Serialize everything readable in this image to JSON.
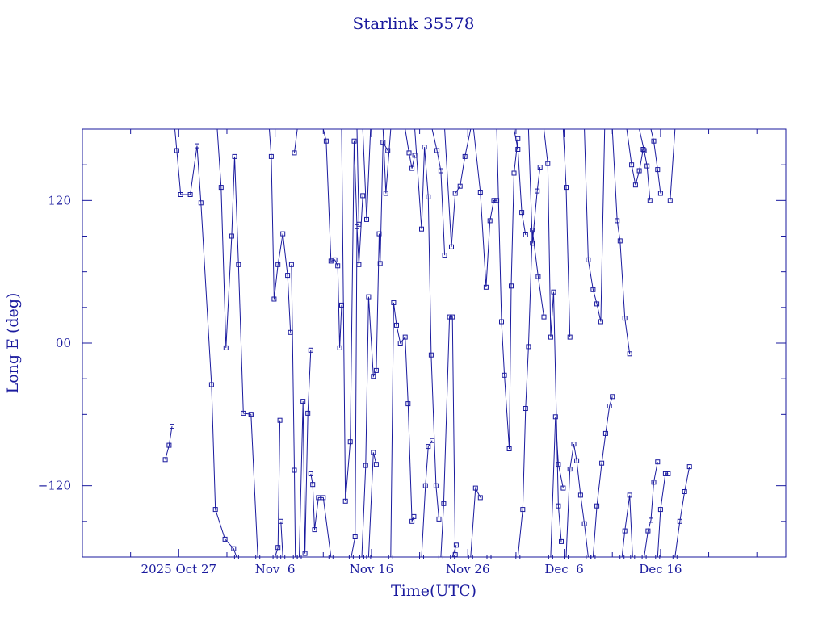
{
  "chart_data": {
    "type": "line",
    "title": "Starlink 35578",
    "xlabel": "Time(UTC)",
    "ylabel": "Long E (deg)",
    "x_unit": "days after 2025-10-17",
    "xlim": [
      0,
      73
    ],
    "ylim": [
      -180,
      180
    ],
    "x_ticks": [
      {
        "x": 10,
        "label": "2025 Oct 27"
      },
      {
        "x": 20,
        "label": "Nov  6"
      },
      {
        "x": 30,
        "label": "Nov 16"
      },
      {
        "x": 40,
        "label": "Nov 26"
      },
      {
        "x": 50,
        "label": "Dec  6"
      },
      {
        "x": 60,
        "label": "Dec 16"
      }
    ],
    "y_ticks": [
      {
        "y": 120,
        "label": "120"
      },
      {
        "y": 0,
        "label": "00"
      },
      {
        "y": -120,
        "label": "−120"
      }
    ],
    "grid": false,
    "line_color": "#1a1a9e",
    "marker": "square",
    "series": [
      {
        "x": [
          8.6,
          9.0,
          9.3
        ],
        "y": [
          -98,
          -86,
          -70
        ]
      },
      {
        "x": [
          9.6,
          9.8,
          10.2,
          11.2,
          11.9,
          12.3,
          13.4,
          13.8,
          14.8,
          15.7,
          16.0
        ],
        "y": [
          180,
          162,
          125,
          125,
          166,
          118,
          -35,
          -140,
          -165,
          -173,
          -180
        ]
      },
      {
        "x": [
          14.0,
          14.4,
          14.9,
          15.5,
          15.8,
          16.2,
          16.7,
          17.5
        ],
        "y": [
          180,
          131,
          -4,
          90,
          157,
          66,
          -59,
          -60
        ]
      },
      {
        "x": [
          17.5,
          18.2
        ],
        "y": [
          -60,
          -180
        ]
      },
      {
        "x": [
          19.4,
          19.6,
          19.9,
          20.3,
          20.8,
          21.3,
          21.6
        ],
        "y": [
          180,
          157,
          37,
          66,
          92,
          57,
          9
        ]
      },
      {
        "x": [
          20.0,
          20.3,
          20.5
        ],
        "y": [
          -180,
          -172,
          -65
        ]
      },
      {
        "x": [
          20.6,
          20.8
        ],
        "y": [
          -150,
          -180
        ]
      },
      {
        "x": [
          21.7,
          22.0,
          22.1
        ],
        "y": [
          66,
          -107,
          -180
        ]
      },
      {
        "x": [
          22.0,
          22.3,
          22.5
        ],
        "y": [
          160,
          180,
          180
        ]
      },
      {
        "x": [
          22.5,
          22.9,
          23.1,
          23.4,
          23.7
        ],
        "y": [
          -180,
          -49,
          -177,
          -59,
          -6
        ]
      },
      {
        "x": [
          23.7,
          23.9,
          24.1,
          24.5,
          25.0,
          25.8
        ],
        "y": [
          -110,
          -119,
          -157,
          -130,
          -130,
          -180
        ]
      },
      {
        "x": [
          25.0,
          25.3,
          25.8,
          26.2,
          26.5,
          26.7,
          26.9
        ],
        "y": [
          180,
          170,
          69,
          70,
          65,
          -4,
          32
        ]
      },
      {
        "x": [
          26.9,
          27.3,
          27.8,
          28.2,
          28.5
        ],
        "y": [
          180,
          -133,
          -83,
          170,
          98
        ]
      },
      {
        "x": [
          27.9,
          28.3,
          28.5,
          28.7,
          29.1
        ],
        "y": [
          -180,
          -163,
          98,
          66,
          124
        ]
      },
      {
        "x": [
          28.5,
          28.7
        ],
        "y": [
          180,
          100
        ]
      },
      {
        "x": [
          29.1,
          29.5,
          29.9,
          30.3,
          30.5
        ],
        "y": [
          180,
          104,
          180,
          180,
          180
        ]
      },
      {
        "x": [
          29.0,
          29.4,
          29.7,
          30.2,
          30.5,
          30.8,
          30.9,
          31.2,
          31.7
        ],
        "y": [
          -180,
          -103,
          39,
          -28,
          -23,
          92,
          67,
          169,
          162
        ]
      },
      {
        "x": [
          29.7,
          30.2,
          30.5
        ],
        "y": [
          -180,
          -92,
          -102
        ]
      },
      {
        "x": [
          31.2,
          31.5,
          32.0,
          32.3
        ],
        "y": [
          180,
          126,
          180,
          180
        ]
      },
      {
        "x": [
          32.0,
          32.3,
          32.6,
          33.0,
          33.5,
          33.8,
          34.2,
          34.4
        ],
        "y": [
          -180,
          34,
          15,
          0,
          5,
          -51,
          -150,
          -146
        ]
      },
      {
        "x": [
          33.5,
          33.9,
          34.2,
          34.5
        ],
        "y": [
          180,
          160,
          147,
          158
        ]
      },
      {
        "x": [
          34.5,
          35.2,
          35.5,
          35.9,
          36.2,
          36.7,
          37.0
        ],
        "y": [
          180,
          96,
          165,
          123,
          -10,
          -120,
          -148
        ]
      },
      {
        "x": [
          35.2,
          35.6,
          35.9,
          36.3
        ],
        "y": [
          -180,
          -120,
          -87,
          -82
        ]
      },
      {
        "x": [
          36.3,
          36.8,
          37.2,
          37.6
        ],
        "y": [
          180,
          162,
          145,
          74
        ]
      },
      {
        "x": [
          37.2,
          37.5,
          38.1,
          38.4,
          38.7
        ],
        "y": [
          -180,
          -135,
          22,
          22,
          -178
        ]
      },
      {
        "x": [
          37.6,
          38.3,
          38.7,
          39.2,
          39.7,
          40.3,
          40.6
        ],
        "y": [
          180,
          81,
          126,
          132,
          157,
          183,
          180
        ]
      },
      {
        "x": [
          38.4,
          38.8
        ],
        "y": [
          -180,
          -170
        ]
      },
      {
        "x": [
          40.3,
          40.8,
          41.3
        ],
        "y": [
          -180,
          -122,
          -130
        ]
      },
      {
        "x": [
          40.6,
          41.3,
          41.9,
          42.3,
          42.7,
          43.0
        ],
        "y": [
          180,
          127,
          47,
          103,
          120,
          120
        ]
      },
      {
        "x": [
          42.2,
          42.6
        ],
        "y": [
          -180,
          -183
        ]
      },
      {
        "x": [
          43.0,
          43.5,
          43.8,
          44.3,
          44.5,
          44.8,
          45.2
        ],
        "y": [
          180,
          18,
          -27,
          -89,
          48,
          143,
          172
        ]
      },
      {
        "x": [
          44.8,
          45.2,
          45.6,
          46.0
        ],
        "y": [
          180,
          163,
          110,
          91
        ]
      },
      {
        "x": [
          45.2,
          45.7,
          46.0,
          46.3,
          46.7,
          47.3,
          47.9
        ],
        "y": [
          -180,
          -140,
          -55,
          -3,
          95,
          56,
          22
        ]
      },
      {
        "x": [
          46.3,
          46.7,
          47.2,
          47.5
        ],
        "y": [
          180,
          84,
          128,
          148
        ]
      },
      {
        "x": [
          47.9,
          48.3,
          48.6,
          48.9,
          49.4,
          49.7
        ],
        "y": [
          180,
          151,
          5,
          43,
          -137,
          -167
        ]
      },
      {
        "x": [
          48.6,
          49.1,
          49.4,
          49.9
        ],
        "y": [
          -180,
          -62,
          -102,
          -122
        ]
      },
      {
        "x": [
          49.9,
          50.2,
          50.6
        ],
        "y": [
          180,
          131,
          5
        ]
      },
      {
        "x": [
          50.2,
          50.6,
          51.0,
          51.3,
          51.7,
          52.1,
          52.5
        ],
        "y": [
          -180,
          -106,
          -85,
          -99,
          -128,
          -152,
          -180
        ]
      },
      {
        "x": [
          52.1,
          52.5,
          53.0,
          53.4,
          53.8,
          54.2
        ],
        "y": [
          180,
          70,
          45,
          33,
          18,
          180
        ]
      },
      {
        "x": [
          53.0,
          53.4,
          53.9,
          54.3,
          54.7,
          55.0
        ],
        "y": [
          -180,
          -137,
          -101,
          -76,
          -53,
          -45
        ]
      },
      {
        "x": [
          55.0,
          55.5,
          55.8,
          56.3,
          56.8
        ],
        "y": [
          180,
          103,
          86,
          21,
          -9
        ]
      },
      {
        "x": [
          56.0,
          56.3,
          56.8,
          57.1
        ],
        "y": [
          -180,
          -158,
          -128,
          -180
        ]
      },
      {
        "x": [
          56.5,
          57.0,
          57.4,
          57.8,
          58.2
        ],
        "y": [
          180,
          150,
          133,
          145,
          163
        ]
      },
      {
        "x": [
          57.8,
          58.3,
          58.6,
          58.9
        ],
        "y": [
          180,
          162,
          149,
          120
        ]
      },
      {
        "x": [
          58.3,
          58.7,
          59.0,
          59.3,
          59.7
        ],
        "y": [
          -180,
          -158,
          -149,
          -117,
          -100
        ]
      },
      {
        "x": [
          59.0,
          59.3,
          59.7,
          60.0
        ],
        "y": [
          180,
          170,
          146,
          126
        ]
      },
      {
        "x": [
          59.7,
          60.0,
          60.5,
          60.8
        ],
        "y": [
          -180,
          -140,
          -110,
          -110
        ]
      },
      {
        "x": [
          61.0,
          61.5
        ],
        "y": [
          120,
          180
        ]
      },
      {
        "x": [
          61.5,
          62.0,
          62.5,
          63.0
        ],
        "y": [
          -180,
          -150,
          -125,
          -104
        ]
      }
    ]
  }
}
